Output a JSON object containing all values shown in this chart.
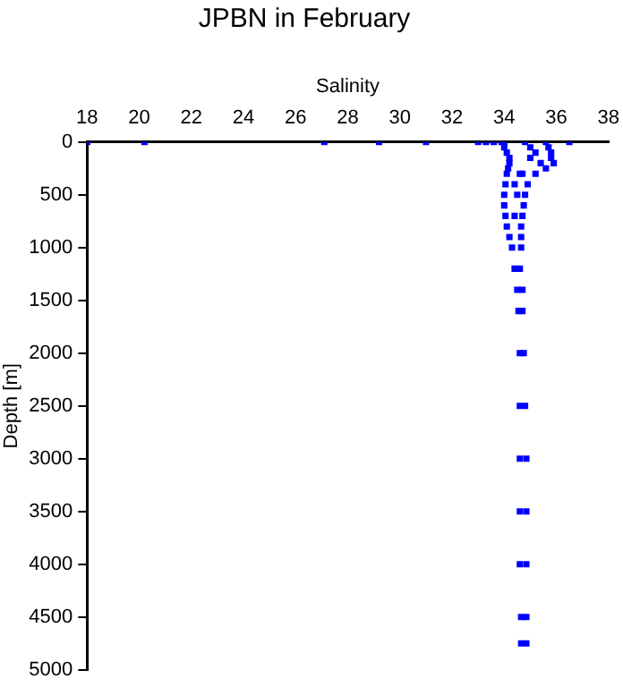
{
  "chart_data": {
    "type": "scatter",
    "title": "JPBN in February",
    "xlabel": "Salinity",
    "ylabel": "Depth [m]",
    "xlim": [
      18,
      38
    ],
    "xticks": [
      18,
      20,
      22,
      24,
      26,
      28,
      30,
      32,
      34,
      36,
      38
    ],
    "ylim": [
      5000,
      0
    ],
    "yticks": [
      0,
      500,
      1000,
      1500,
      2000,
      2500,
      3000,
      3500,
      4000,
      4500,
      5000
    ],
    "grid": false,
    "legend": false,
    "marker": "square",
    "series": [
      {
        "color": "#0000ff",
        "x": [
          18.0,
          20.2,
          27.1,
          29.2,
          31.0,
          33.0,
          33.3,
          33.6,
          33.9,
          36.5,
          34.0,
          34.0,
          34.1,
          34.2,
          34.2,
          34.15,
          34.1,
          34.05,
          34.0,
          34.0,
          34.05,
          34.1,
          34.2,
          34.3,
          34.4,
          34.5,
          34.55,
          34.6,
          34.6,
          34.6,
          34.6,
          34.6,
          34.65,
          34.65,
          35.6,
          35.7,
          35.8,
          35.8,
          35.9,
          35.6,
          35.2,
          34.9,
          34.8,
          34.75,
          34.7,
          34.65,
          34.65,
          34.65,
          34.6,
          34.7,
          34.7,
          34.75,
          34.8,
          34.85,
          34.85,
          34.85,
          34.85,
          34.85,
          34.8,
          35.0,
          35.2,
          35.0,
          35.4,
          34.6,
          34.7,
          34.4,
          34.5,
          34.4
        ],
        "values": [
          0,
          0,
          0,
          0,
          0,
          0,
          0,
          0,
          0,
          0,
          0,
          50,
          100,
          150,
          200,
          250,
          300,
          400,
          500,
          600,
          700,
          800,
          900,
          1000,
          1200,
          1400,
          1600,
          2000,
          2500,
          3000,
          3500,
          4000,
          4500,
          4750,
          0,
          50,
          100,
          150,
          200,
          250,
          300,
          400,
          500,
          600,
          700,
          800,
          900,
          1000,
          1200,
          1400,
          1600,
          2000,
          2500,
          3000,
          3500,
          4000,
          4500,
          4750,
          0,
          50,
          100,
          150,
          200,
          300,
          300,
          400,
          500,
          700
        ]
      }
    ]
  }
}
